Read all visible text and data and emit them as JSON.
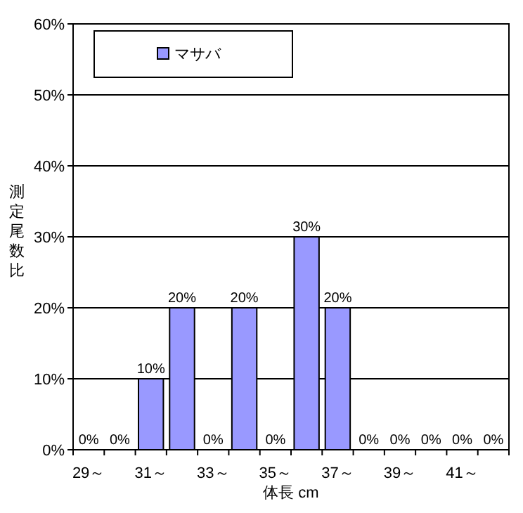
{
  "chart_data": {
    "type": "bar",
    "xlabel": "体長 cm",
    "ylabel": "測定尾数比",
    "categories": [
      "29～",
      null,
      "31～",
      null,
      "33～",
      null,
      "35～",
      null,
      "37～",
      null,
      "39～",
      null,
      "41～",
      null
    ],
    "series": [
      {
        "name": "マサバ",
        "color": "#9999ff",
        "values": [
          0,
          0,
          10,
          20,
          0,
          20,
          0,
          30,
          20,
          0,
          0,
          0,
          0,
          0
        ],
        "value_labels": [
          "0%",
          "0%",
          "10%",
          "20%",
          "0%",
          "20%",
          "0%",
          "30%",
          "20%",
          "0%",
          "0%",
          "0%",
          "0%",
          "0%"
        ]
      }
    ],
    "ylim": [
      0,
      60
    ],
    "yticks": [
      {
        "value": 0,
        "label": "0%"
      },
      {
        "value": 10,
        "label": "10%"
      },
      {
        "value": 20,
        "label": "20%"
      },
      {
        "value": 30,
        "label": "30%"
      },
      {
        "value": 40,
        "label": "40%"
      },
      {
        "value": 50,
        "label": "50%"
      },
      {
        "value": 60,
        "label": "60%"
      }
    ],
    "grid": "y",
    "legend": "top left"
  }
}
